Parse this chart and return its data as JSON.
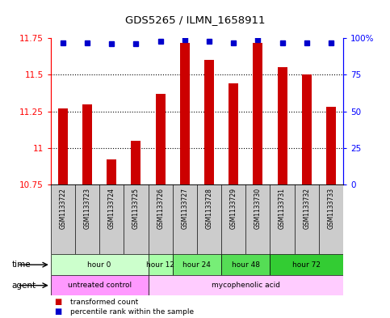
{
  "title": "GDS5265 / ILMN_1658911",
  "samples": [
    "GSM1133722",
    "GSM1133723",
    "GSM1133724",
    "GSM1133725",
    "GSM1133726",
    "GSM1133727",
    "GSM1133728",
    "GSM1133729",
    "GSM1133730",
    "GSM1133731",
    "GSM1133732",
    "GSM1133733"
  ],
  "transformed_counts": [
    11.27,
    11.3,
    10.92,
    11.05,
    11.37,
    11.72,
    11.6,
    11.44,
    11.72,
    11.55,
    11.5,
    11.28
  ],
  "percentile_ranks": [
    97,
    97,
    96,
    96,
    98,
    99,
    98,
    97,
    99,
    97,
    97,
    97
  ],
  "ylim_left": [
    10.75,
    11.75
  ],
  "ylim_right": [
    0,
    100
  ],
  "yticks_left": [
    10.75,
    11.0,
    11.25,
    11.5,
    11.75
  ],
  "yticks_right": [
    0,
    25,
    50,
    75,
    100
  ],
  "bar_color": "#cc0000",
  "dot_color": "#0000cc",
  "time_groups": [
    {
      "label": "hour 0",
      "start": 0,
      "end": 4,
      "color": "#ccffcc"
    },
    {
      "label": "hour 12",
      "start": 4,
      "end": 5,
      "color": "#aaffaa"
    },
    {
      "label": "hour 24",
      "start": 5,
      "end": 7,
      "color": "#77ee77"
    },
    {
      "label": "hour 48",
      "start": 7,
      "end": 9,
      "color": "#55dd55"
    },
    {
      "label": "hour 72",
      "start": 9,
      "end": 12,
      "color": "#33cc33"
    }
  ],
  "agent_groups": [
    {
      "label": "untreated control",
      "start": 0,
      "end": 4,
      "color": "#ff99ff"
    },
    {
      "label": "mycophenolic acid",
      "start": 4,
      "end": 12,
      "color": "#ffccff"
    }
  ],
  "sample_bg_color": "#cccccc",
  "legend_red_label": "transformed count",
  "legend_blue_label": "percentile rank within the sample"
}
